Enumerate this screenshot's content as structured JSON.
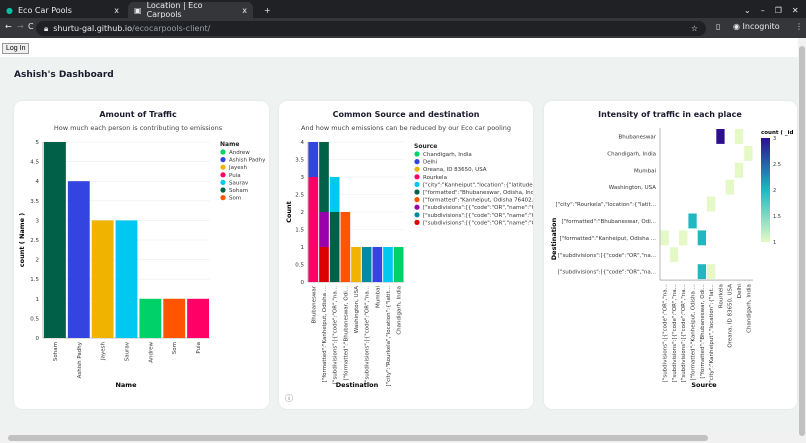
{
  "browser": {
    "tabs": [
      {
        "label": "Eco Car Pools",
        "close": "x"
      },
      {
        "label": "Location | Eco Carpools",
        "close": "x"
      }
    ],
    "new_tab": "+",
    "url_host": "shurtu-gal.github.io",
    "url_path": "/ecocarpools-client/",
    "profile": "Incognito"
  },
  "page": {
    "login_label": "Log In",
    "dashboard_title": "Ashish's Dashboard",
    "info_icon": "ⓘ"
  },
  "chart_data": [
    {
      "type": "bar",
      "title": "Amount of Traffic",
      "subtitle": "How much each person is contributing to emissions",
      "xlabel": "Name",
      "ylabel": "count ( Name )",
      "ylim": [
        0,
        5
      ],
      "yticks": [
        "0",
        "0.5",
        "1",
        "1.5",
        "2",
        "2.5",
        "3",
        "3.5",
        "4",
        "4.5",
        "5"
      ],
      "categories": [
        "Soham",
        "Ashish Padhy",
        "Jayesh",
        "Saurav",
        "Andrew",
        "Som",
        "Puia"
      ],
      "values": [
        5,
        4,
        3,
        3,
        1,
        1,
        1
      ],
      "legend": {
        "title": "Name",
        "position": "right",
        "entries": [
          {
            "name": "Andrew",
            "color": "#00d26a"
          },
          {
            "name": "Ashish Padhy",
            "color": "#3344e0"
          },
          {
            "name": "Jayesh",
            "color": "#f0b400"
          },
          {
            "name": "Puia",
            "color": "#ff0066"
          },
          {
            "name": "Saurav",
            "color": "#00c8f0"
          },
          {
            "name": "Soham",
            "color": "#006048"
          },
          {
            "name": "Som",
            "color": "#ff5500"
          }
        ]
      }
    },
    {
      "type": "bar",
      "stacked": true,
      "title": "Common Source and destination",
      "subtitle": "And how much emissions can be reduced by our Eco car pooling",
      "xlabel": "Destination",
      "ylabel": "Count",
      "ylim": [
        0,
        4
      ],
      "yticks": [
        "0",
        "0.5",
        "1",
        "1.5",
        "2",
        "2.5",
        "3",
        "3.5",
        "4"
      ],
      "categories": [
        "Bhubaneswar",
        "[\"formatted\":\"Kanheiput, Odisha ...",
        "[\"subdivisions\":[{\"code\":\"OR\",\"na...",
        "[\"formatted\":\"Bhubaneswar, Odi...",
        "Washington, USA",
        "[\"subdivisions\":[{\"code\":\"OR\",\"na...",
        "Mumbai",
        "[\"city\":\"Rourkela\",\"location\":{\"latit...",
        "Chandigarh, India"
      ],
      "stacks": [
        [
          [
            "Rourkela",
            3
          ],
          [
            "Delhi",
            1
          ]
        ],
        [
          [
            "S10",
            1
          ],
          [
            "S8",
            1
          ],
          [
            "S6",
            2
          ]
        ],
        [
          [
            "S6",
            2
          ],
          [
            "S5",
            1
          ]
        ],
        [
          [
            "S7",
            2
          ]
        ],
        [
          [
            "Oreana",
            1
          ]
        ],
        [
          [
            "S9",
            1
          ]
        ],
        [
          [
            "Delhi",
            1
          ]
        ],
        [
          [
            "S5",
            1
          ]
        ],
        [
          [
            "Chandigarh",
            1
          ]
        ]
      ],
      "legend": {
        "title": "Source",
        "position": "right",
        "entries": [
          {
            "key": "Chandigarh",
            "name": "Chandigarh, India",
            "color": "#00d26a"
          },
          {
            "key": "Delhi",
            "name": "Delhi",
            "color": "#3344e0"
          },
          {
            "key": "Oreana",
            "name": "Oreana, ID 83650, USA",
            "color": "#f0b400"
          },
          {
            "key": "Rourkela",
            "name": "Rourkela",
            "color": "#ff0066"
          },
          {
            "key": "S5",
            "name": "[\"city\":\"Kanheiput\",\"location\":{\"latitude\":1...",
            "color": "#00c8f0"
          },
          {
            "key": "S6",
            "name": "[\"formatted\":\"Bhubaneswar, Odisha, Indi...",
            "color": "#006048"
          },
          {
            "key": "S7",
            "name": "[\"formatted\":\"Kanheiput, Odisha 76402...",
            "color": "#ff5500"
          },
          {
            "key": "S8",
            "name": "[\"subdivisions\":[{\"code\":\"OR\",\"name\":\"O...",
            "color": "#9900aa"
          },
          {
            "key": "S9",
            "name": "[\"subdivisions\":[{\"code\":\"OR\",\"name\":\"O...",
            "color": "#008ba0"
          },
          {
            "key": "S10",
            "name": "[\"subdivisions\":[{\"code\":\"OR\",\"name\":\"O...",
            "color": "#dd0000"
          }
        ]
      }
    },
    {
      "type": "heatmap",
      "title": "Intensity of traffic in each place",
      "xlabel": "Source",
      "ylabel": "Destination",
      "x": [
        "[\"subdivisions\":[{\"code\":\"OR\",\"na...",
        "[\"subdivisions\":[{\"code\":\"OR\",\"na...",
        "[\"subdivisions\":[{\"code\":\"OR\",\"na...",
        "[\"formatted\":\"Kanheiput, Odisha ...",
        "[\"formatted\":\"Bhubaneswar, Odi...",
        "[\"city\":\"Kanheiput\",\"location\":{\"lat...",
        "Rourkela",
        "Oreana, ID 83650, USA",
        "Delhi",
        "Chandigarh, India"
      ],
      "y": [
        "Bhubaneswar",
        "Chandigarh, India",
        "Mumbai",
        "Washington, USA",
        "[\"city\":\"Rourkela\",\"location\":{\"latit...",
        "[\"formatted\":\"Bhubaneswar, Odi...",
        "[\"formatted\":\"Kanheiput, Odisha ...",
        "[\"subdivisions\":[{\"code\":\"OR\",\"na...",
        "[\"subdivisions\":[{\"code\":\"OR\",\"na..."
      ],
      "cells": [
        [
          6,
          0,
          3
        ],
        [
          8,
          0,
          1
        ],
        [
          9,
          1,
          1
        ],
        [
          8,
          2,
          1
        ],
        [
          7,
          3,
          1
        ],
        [
          5,
          4,
          1
        ],
        [
          3,
          5,
          2
        ],
        [
          0,
          6,
          1
        ],
        [
          2,
          6,
          1
        ],
        [
          4,
          6,
          2
        ],
        [
          1,
          7,
          1
        ],
        [
          4,
          8,
          2
        ],
        [
          5,
          8,
          1
        ]
      ],
      "legend": {
        "title": "count ( _id",
        "ticks": [
          "1",
          "1.5",
          "2",
          "2.5",
          "3"
        ],
        "range": [
          1,
          3
        ],
        "colors": [
          "#e4f9c6",
          "#1fb8c0",
          "#2c0f8e"
        ]
      }
    }
  ]
}
